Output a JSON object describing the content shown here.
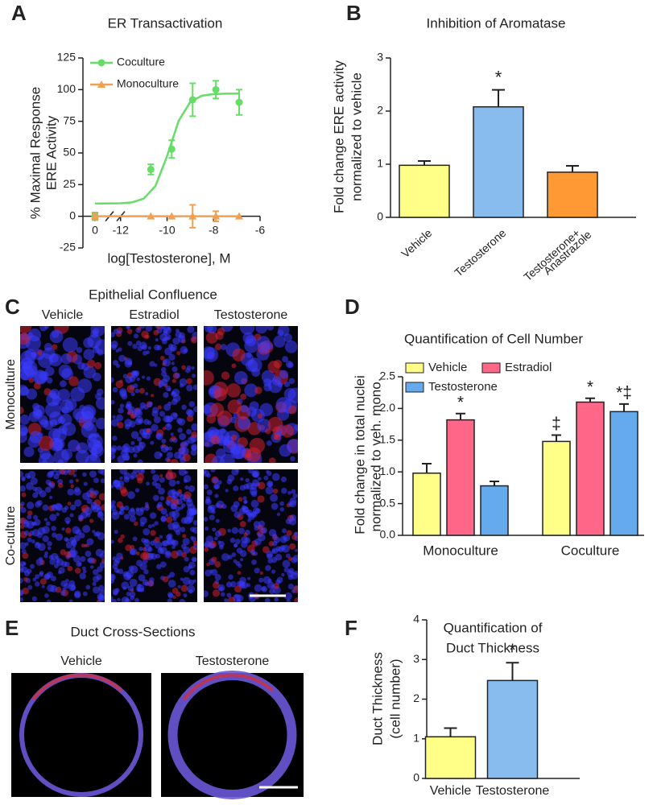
{
  "chart_data": [
    {
      "panel": "A",
      "type": "line",
      "title": "ER Transactivation",
      "x_label": "log[Testosterone], M",
      "y_label": [
        "% Maximal Response",
        "ERE Activity"
      ],
      "x": [
        0,
        -10.7,
        -9.8,
        -8.9,
        -7.9,
        -6.9
      ],
      "series": [
        {
          "name": "Coculture",
          "color": "#66dd66",
          "marker": "circle",
          "values": [
            0,
            37,
            53,
            92,
            100,
            90
          ],
          "errors": [
            3,
            4,
            7,
            13,
            7,
            10
          ],
          "fit": {
            "x": [
              -13.1,
              -12,
              -11.5,
              -11,
              -10.5,
              -10,
              -9.5,
              -9,
              -8.5,
              -8,
              -7.5,
              -7,
              -6.9
            ],
            "values": [
              10,
              10.3,
              11,
              14,
              23.9,
              47.5,
              75.4,
              90.3,
              95.2,
              96.5,
              96.8,
              96.9,
              96.9
            ]
          }
        },
        {
          "name": "Monoculture",
          "color": "#f0a050",
          "marker": "triangle",
          "values": [
            0,
            0,
            0,
            0,
            0,
            0
          ],
          "errors": [
            2,
            0,
            0,
            9,
            4,
            0
          ],
          "fit": {
            "x": [
              -13.1,
              -6.9
            ],
            "values": [
              0,
              0
            ]
          }
        }
      ],
      "xlim": [
        -13.1,
        -6
      ],
      "xticks": [
        0,
        -12,
        -10,
        -8,
        -6
      ],
      "axis_break": true,
      "ylim": [
        -25,
        125
      ],
      "yticks": [
        -25,
        0,
        25,
        50,
        75,
        100,
        125
      ],
      "legend": "upper left"
    },
    {
      "panel": "B",
      "type": "bar",
      "title": "Inhibition of Aromatase",
      "y_label": [
        "Fold change ERE activity",
        "normalized to vehicle"
      ],
      "categories": [
        [
          "Vehicle"
        ],
        [
          "Testosterone"
        ],
        [
          "Testosterone+",
          "Anastrazole"
        ]
      ],
      "values": [
        0.98,
        2.08,
        0.85
      ],
      "errors": [
        0.08,
        0.32,
        0.12
      ],
      "colors": [
        "#ffff88",
        "#88bbee",
        "#ff9933"
      ],
      "annotations": [
        null,
        "*",
        null
      ],
      "ylim": [
        0,
        3
      ],
      "yticks": [
        0,
        1,
        2,
        3
      ]
    },
    {
      "panel": "D",
      "type": "grouped_bar",
      "title": "Quantification of Cell Number",
      "y_label": [
        "Fold change in total nuclei",
        "normalized to veh. mono."
      ],
      "categories": [
        "Monoculture",
        "Coculture"
      ],
      "series": [
        {
          "name": "Vehicle",
          "color": "#ffff88",
          "values": [
            0.98,
            1.48
          ],
          "errors": [
            0.15,
            0.1
          ],
          "annotations": [
            null,
            "‡"
          ]
        },
        {
          "name": "Estradiol",
          "color": "#ff6688",
          "values": [
            1.82,
            2.1
          ],
          "errors": [
            0.1,
            0.06
          ],
          "annotations": [
            "*",
            "*"
          ]
        },
        {
          "name": "Testosterone",
          "color": "#66aaee",
          "values": [
            0.78,
            1.95
          ],
          "errors": [
            0.07,
            0.12
          ],
          "annotations": [
            null,
            "*‡"
          ]
        }
      ],
      "ylim": [
        0,
        2.5
      ],
      "yticks": [
        {
          "value": 0,
          "label": "0.0"
        },
        {
          "value": 0.5,
          "label": "0.5"
        },
        {
          "value": 1,
          "label": "1.0"
        },
        {
          "value": 1.5,
          "label": "1.5"
        },
        {
          "value": 2,
          "label": "2.0"
        },
        {
          "value": 2.5,
          "label": "2.5"
        }
      ],
      "legend": "upper left"
    },
    {
      "panel": "F",
      "type": "bar",
      "title": [
        "Quantification of",
        "Duct Thickness"
      ],
      "y_label": [
        "Duct Thickness",
        "(cell number)"
      ],
      "categories": [
        [
          "Vehicle"
        ],
        [
          "Testosterone"
        ]
      ],
      "values": [
        1.05,
        2.47
      ],
      "errors": [
        0.22,
        0.45
      ],
      "colors": [
        "#ffff88",
        "#88bbee"
      ],
      "annotations": [
        null,
        "*"
      ],
      "ylim": [
        0,
        4
      ],
      "yticks": [
        0,
        1,
        2,
        3,
        4
      ]
    }
  ],
  "images": [
    {
      "panel": "C",
      "title": "Epithelial Confluence",
      "columns": [
        "Vehicle",
        "Estradiol",
        "Testosterone"
      ],
      "rows": [
        "Monoculture",
        "Co-culture"
      ]
    },
    {
      "panel": "E",
      "title": "Duct Cross-Sections",
      "columns": [
        "Vehicle",
        "Testosterone"
      ]
    }
  ]
}
